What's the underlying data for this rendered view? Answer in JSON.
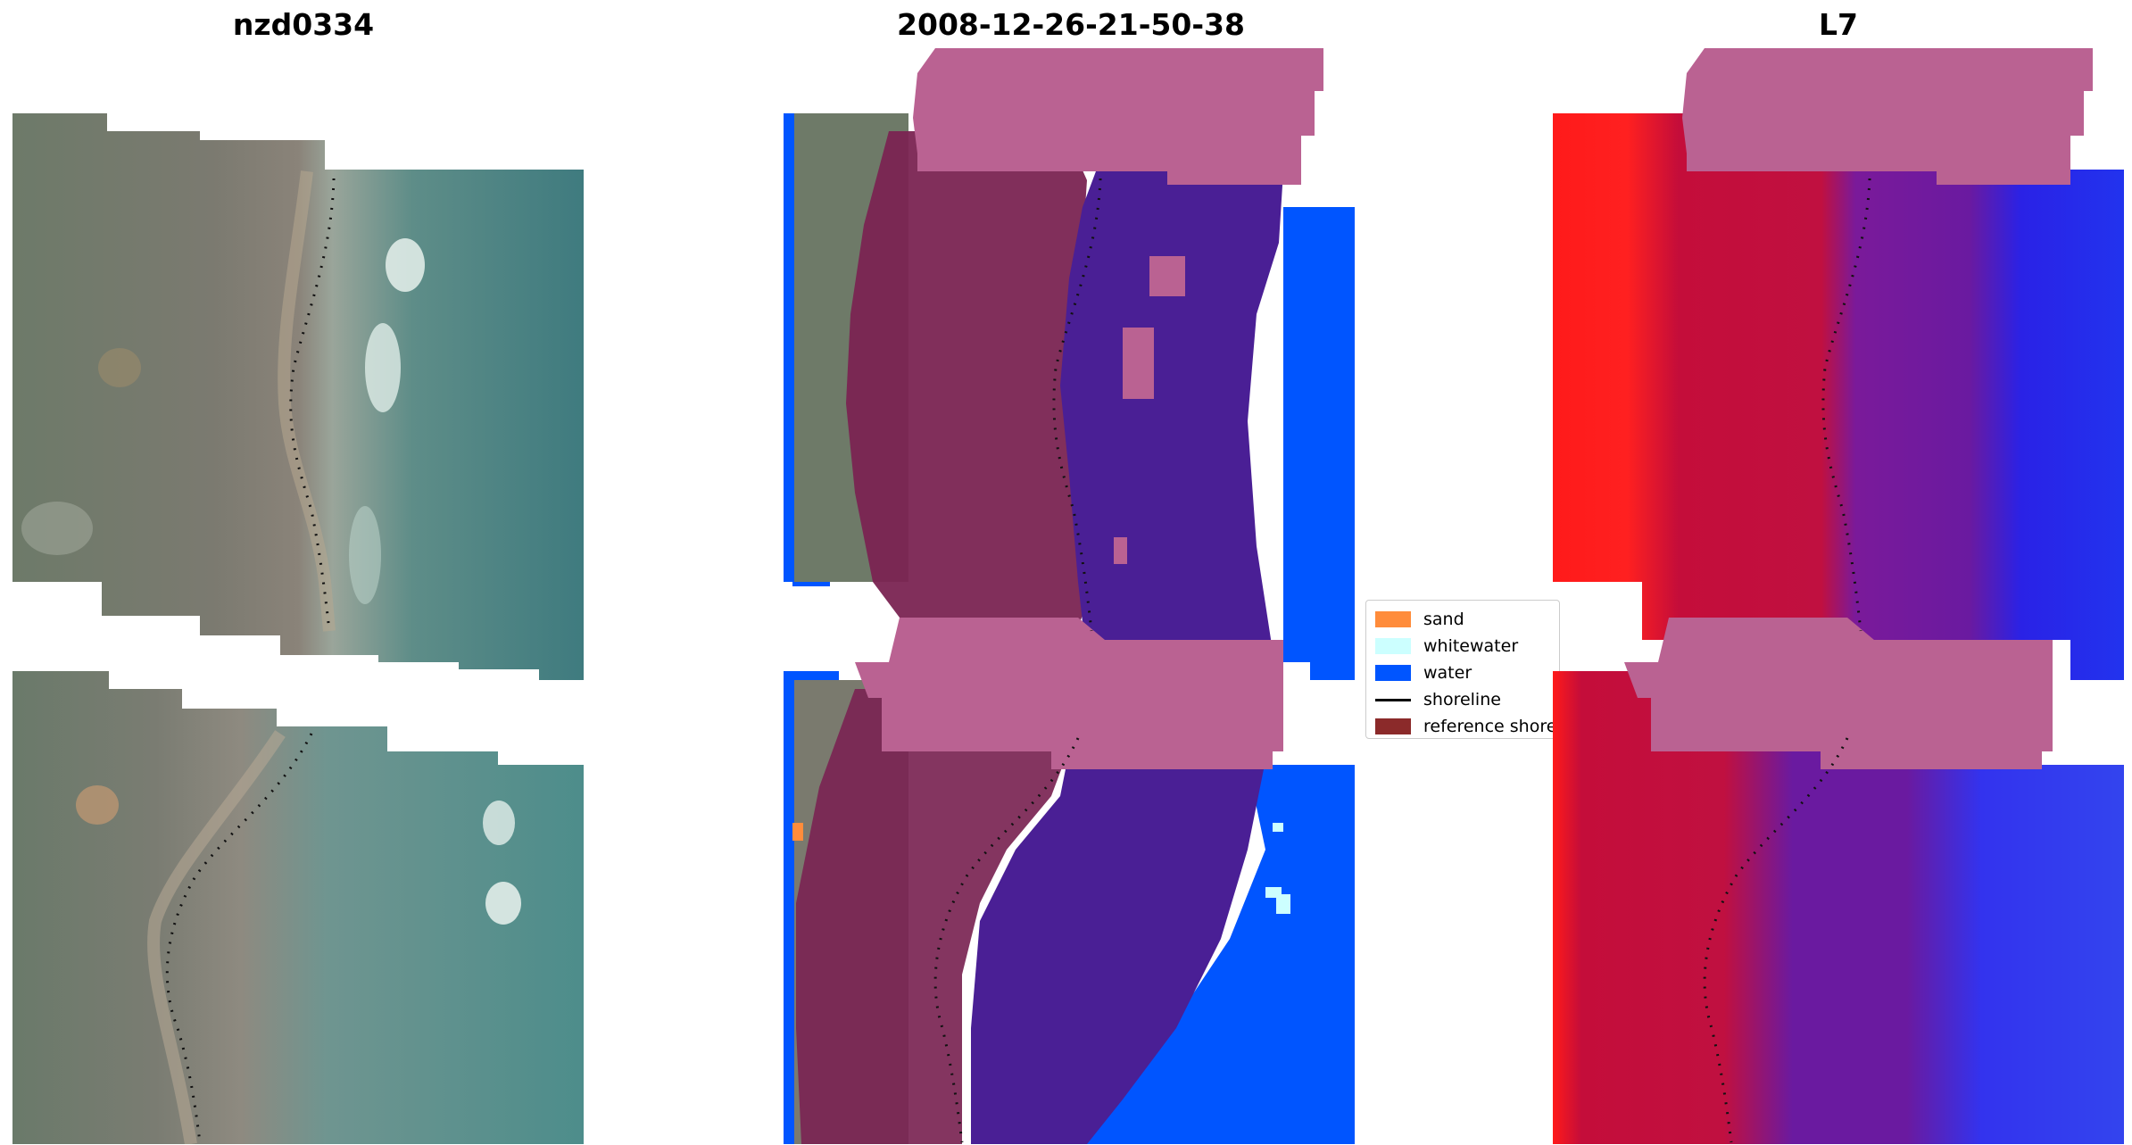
{
  "titles": {
    "left": "nzd0334",
    "center": "2008-12-26-21-50-38",
    "right": "L7"
  },
  "legend": {
    "items": [
      {
        "label": "sand",
        "color": "#ff8c3b",
        "kind": "patch"
      },
      {
        "label": "whitewater",
        "color": "#ccffff",
        "kind": "patch"
      },
      {
        "label": "water",
        "color": "#0055ff",
        "kind": "patch"
      },
      {
        "label": "shoreline",
        "color": "#000000",
        "kind": "line"
      },
      {
        "label": "reference shoreline",
        "color": "#8b2a2a",
        "kind": "patch"
      }
    ]
  },
  "colors": {
    "sand": "#ff8c3b",
    "whitewater": "#ccffff",
    "water": "#0055ff",
    "land_overlay": "#7a2452",
    "water_overlay": "#4a1f95",
    "buffer_overlay": "#ba6292",
    "imagery_land": "#6f7866",
    "imagery_water": "#4f8a86",
    "index_red": "#ff1a1a",
    "index_crimson": "#c40d3a",
    "index_purple": "#6a1aa0",
    "index_blue": "#2233ee",
    "shoreline": "#000000"
  }
}
